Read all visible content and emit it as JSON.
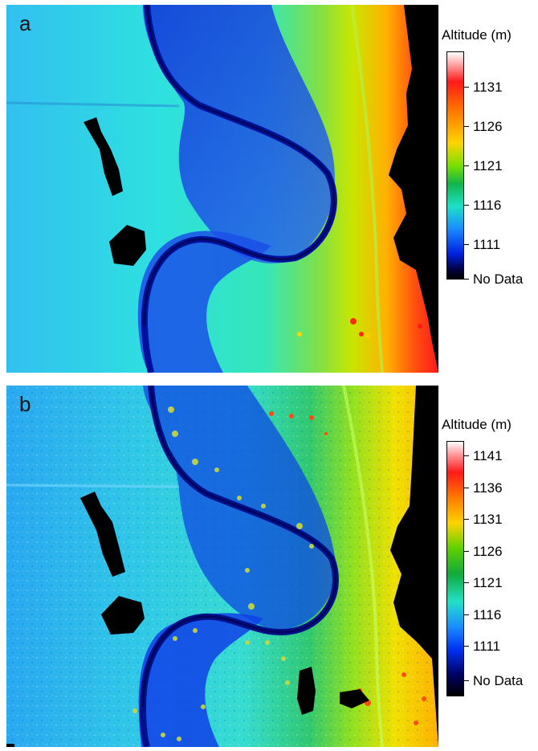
{
  "panels": [
    {
      "letter": "a",
      "legend_title": "Altitude (m)",
      "ticks": [
        "1131",
        "1126",
        "1121",
        "1116",
        "1111"
      ],
      "nodata_label": "No Data"
    },
    {
      "letter": "b",
      "legend_title": "Altitude (m)",
      "ticks": [
        "1141",
        "1136",
        "1131",
        "1126",
        "1121",
        "1116",
        "1111"
      ],
      "nodata_label": "No Data"
    }
  ],
  "colors": {
    "nodata": "#000000",
    "low": "#0a1ad0",
    "mid": "#22d8c8",
    "high": "#ff2a10"
  }
}
